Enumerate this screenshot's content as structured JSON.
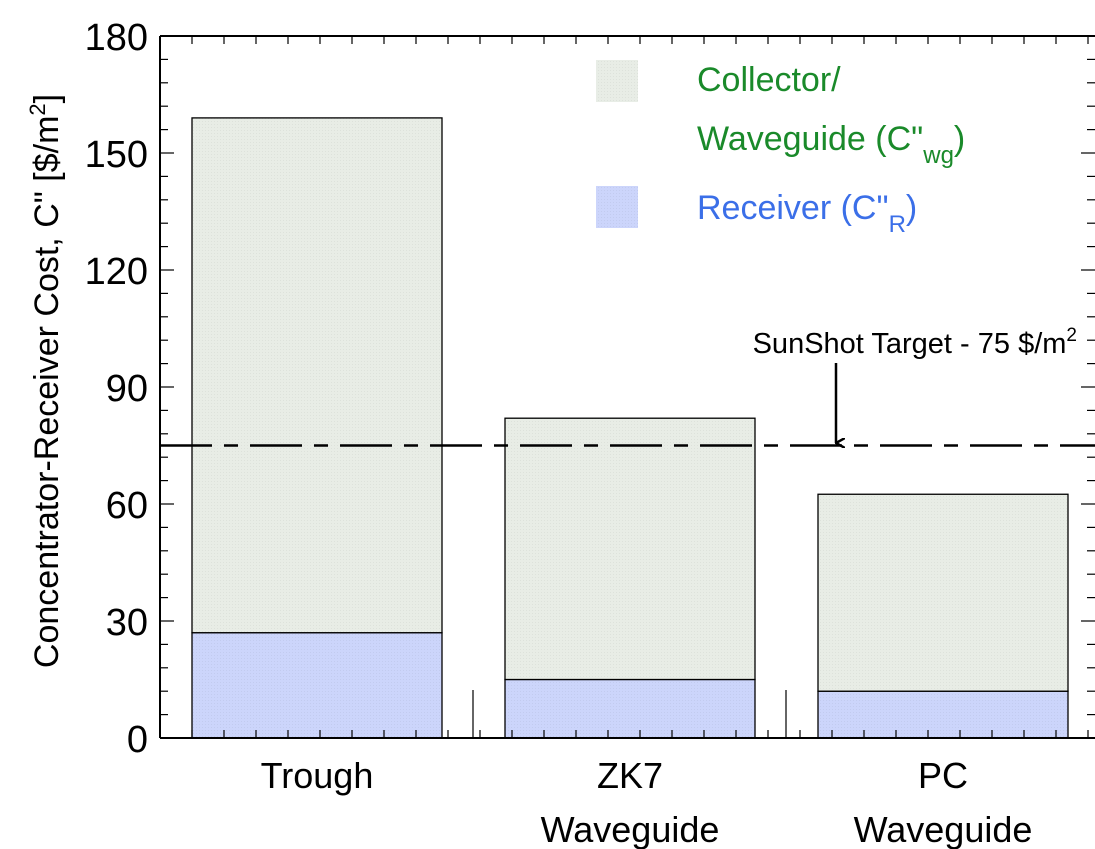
{
  "chart_data": {
    "type": "bar",
    "stacked": true,
    "ylabel": "Concentrator-Receiver Cost, C\" [$/m",
    "ylabel_sup": "2",
    "ylabel_close": "]",
    "ylim": [
      0,
      180
    ],
    "yticks": [
      "0",
      "30",
      "60",
      "90",
      "120",
      "150",
      "180"
    ],
    "categories": [
      {
        "line1": "Trough",
        "line2": ""
      },
      {
        "line1": "ZK7",
        "line2": "Waveguide"
      },
      {
        "line1": "PC",
        "line2": "Waveguide"
      }
    ],
    "series": [
      {
        "name": "Receiver",
        "values": [
          27,
          15,
          12
        ],
        "color": "#ccd5fb"
      },
      {
        "name": "Collector/Waveguide",
        "values": [
          132,
          67,
          50.5
        ],
        "color": "#e8ede6"
      }
    ],
    "legend": {
      "placement": "top-right",
      "collector_line1": "Collector/",
      "collector_line2": "Waveguide (C\"",
      "collector_sub": "wg",
      "collector_close": ")",
      "collector_color": "#1a8a2a",
      "receiver_text": "Receiver (C\"",
      "receiver_sub": "R",
      "receiver_close": ")",
      "receiver_color": "#3b6fe8"
    },
    "reference_line": {
      "value": 75,
      "label": "SunShot Target - 75 $/m",
      "label_sup": "2"
    },
    "grid": false
  }
}
